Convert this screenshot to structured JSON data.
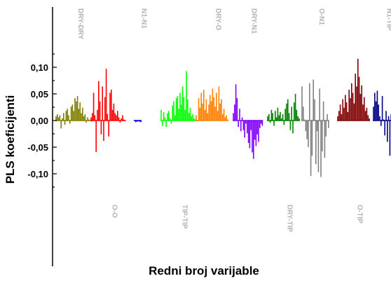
{
  "chart_data": {
    "type": "bar",
    "title": "",
    "xlabel": "Redni broj varijable",
    "ylabel": "PLS koeficijenti",
    "ylim": [
      -0.125,
      0.125
    ],
    "yticks": [
      -0.1,
      -0.05,
      0.0,
      0.05,
      0.1
    ],
    "ytick_labels": [
      "-0,10",
      "-0,05",
      "0,00",
      "0,05",
      "0,10"
    ],
    "grid": false,
    "x_axis_visible": false,
    "groups": [
      {
        "label": "DRY-DRY",
        "label_position": "top",
        "color": "#808000",
        "values": [
          0.008,
          0.012,
          0.006,
          0.01,
          -0.015,
          0.004,
          0.014,
          -0.008,
          0.018,
          0.022,
          0.01,
          -0.006,
          0.026,
          0.03,
          0.018,
          0.042,
          0.036,
          0.046,
          0.022,
          0.034,
          0.014,
          0.024,
          0.008,
          0.012,
          -0.004,
          0.006,
          0.002,
          0.0,
          -0.002,
          0.001
        ]
      },
      {
        "label": "O-O",
        "label_position": "bottom",
        "color": "#ff0000",
        "values": [
          0.006,
          0.014,
          0.052,
          0.01,
          -0.059,
          0.02,
          0.074,
          0.036,
          -0.026,
          0.064,
          -0.038,
          0.044,
          0.097,
          0.012,
          -0.03,
          0.052,
          0.058,
          0.02,
          0.032,
          0.014,
          0.01,
          0.018,
          0.006,
          -0.004,
          0.004,
          0.01,
          0.002,
          0.0
        ]
      },
      {
        "label": "N1-N1",
        "label_position": "top",
        "color": "#0000ff",
        "values": [
          -0.001,
          -0.003,
          -0.002,
          -0.001,
          -0.002,
          -0.003
        ]
      },
      {
        "label": "TIP-TIP",
        "label_position": "bottom",
        "color": "#00ff00",
        "values": [
          0.02,
          -0.01,
          0.016,
          0.006,
          -0.012,
          0.014,
          0.018,
          0.004,
          -0.006,
          0.028,
          0.036,
          0.01,
          0.042,
          0.046,
          0.022,
          0.052,
          0.03,
          0.064,
          0.044,
          0.02,
          0.093,
          0.04,
          0.014,
          0.024,
          0.008,
          0.012,
          0.004,
          0.002
        ]
      },
      {
        "label": "DRY-O",
        "label_position": "top",
        "color": "#ff8000",
        "values": [
          0.01,
          -0.002,
          0.042,
          0.024,
          0.052,
          0.032,
          0.058,
          0.02,
          0.04,
          0.014,
          0.03,
          0.048,
          0.036,
          0.06,
          0.044,
          0.026,
          0.052,
          0.018,
          0.064,
          0.032,
          0.04,
          0.012,
          0.022,
          0.006,
          0.01,
          0.002
        ]
      },
      {
        "label": "DRY-N1",
        "label_position": "top",
        "color": "#8000ff",
        "values": [
          0.014,
          0.03,
          0.068,
          0.042,
          -0.012,
          0.022,
          -0.02,
          0.006,
          -0.018,
          -0.032,
          -0.006,
          -0.024,
          -0.042,
          -0.052,
          -0.018,
          -0.06,
          -0.072,
          -0.036,
          -0.048,
          -0.026,
          -0.04,
          -0.014,
          -0.006,
          -0.01
        ]
      },
      {
        "label": "DRY-TIP",
        "label_position": "bottom",
        "color": "#008000",
        "values": [
          0.008,
          0.012,
          -0.004,
          0.02,
          0.014,
          -0.01,
          0.018,
          0.006,
          0.024,
          0.01,
          0.016,
          0.004,
          0.012,
          -0.008,
          0.022,
          0.032,
          0.04,
          0.014,
          -0.018,
          0.026,
          -0.024,
          0.034,
          0.05,
          0.02,
          0.008,
          0.004
        ]
      },
      {
        "label": "O-N1",
        "label_position": "top",
        "color": "#808080",
        "values": [
          0.064,
          0.026,
          0.002,
          -0.02,
          -0.035,
          -0.05,
          0.07,
          -0.104,
          -0.066,
          0.077,
          0.04,
          -0.082,
          -0.02,
          -0.097,
          0.06,
          -0.106,
          -0.058,
          0.036,
          -0.07,
          -0.03,
          0.012,
          -0.014
        ]
      },
      {
        "label": "O-TIP",
        "label_position": "bottom",
        "color": "#800000",
        "values": [
          0.008,
          0.018,
          0.03,
          0.012,
          0.04,
          0.024,
          0.048,
          0.034,
          0.016,
          0.058,
          0.042,
          0.07,
          0.052,
          0.032,
          0.088,
          0.064,
          0.116,
          0.082,
          0.05,
          0.066,
          0.03,
          0.044,
          0.018,
          0.024,
          0.01,
          0.004
        ]
      },
      {
        "label": "N1-TIP",
        "label_position": "top",
        "color": "#000080",
        "values": [
          0.026,
          0.052,
          0.036,
          0.056,
          0.03,
          0.008,
          -0.01,
          0.046,
          0.002,
          -0.028,
          0.018,
          -0.04,
          0.008,
          -0.066,
          0.012,
          -0.004
        ]
      }
    ]
  }
}
